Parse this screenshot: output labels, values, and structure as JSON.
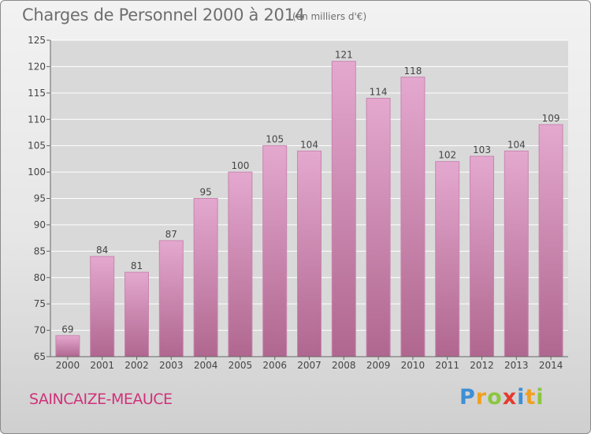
{
  "header": {
    "title": "Charges de Personnel 2000 à 2014",
    "subtitle": "(en milliers d'€)"
  },
  "footer": {
    "commune": "SAINCAIZE-MEAUCE",
    "logo": {
      "text": "Proxiti",
      "letters": [
        {
          "char": "P",
          "color": "#3c8fd6"
        },
        {
          "char": "r",
          "color": "#f0a020"
        },
        {
          "char": "o",
          "color": "#8cc63f"
        },
        {
          "char": "x",
          "color": "#e23b2e"
        },
        {
          "char": "i",
          "color": "#3c8fd6"
        },
        {
          "char": "t",
          "color": "#f0a020"
        },
        {
          "char": "i",
          "color": "#8cc63f"
        }
      ]
    }
  },
  "chart_data": {
    "type": "bar",
    "title": "Charges de Personnel 2000 à 2014",
    "subtitle": "(en milliers d'€)",
    "categories": [
      "2000",
      "2001",
      "2002",
      "2003",
      "2004",
      "2005",
      "2006",
      "2007",
      "2008",
      "2009",
      "2010",
      "2011",
      "2012",
      "2013",
      "2014"
    ],
    "values": [
      69,
      84,
      81,
      87,
      95,
      100,
      105,
      104,
      121,
      114,
      118,
      102,
      103,
      104,
      109
    ],
    "ylim": [
      65,
      125
    ],
    "yticks": [
      65,
      70,
      75,
      80,
      85,
      90,
      95,
      100,
      105,
      110,
      115,
      120,
      125
    ],
    "grid": true,
    "colors": {
      "bar_light": "#e4a8cf",
      "bar_dark": "#b0678f",
      "bar_stroke": "#c985af",
      "plot_bg": "#d9d9d9",
      "grid": "#ffffff",
      "axis_text": "#444444"
    }
  }
}
